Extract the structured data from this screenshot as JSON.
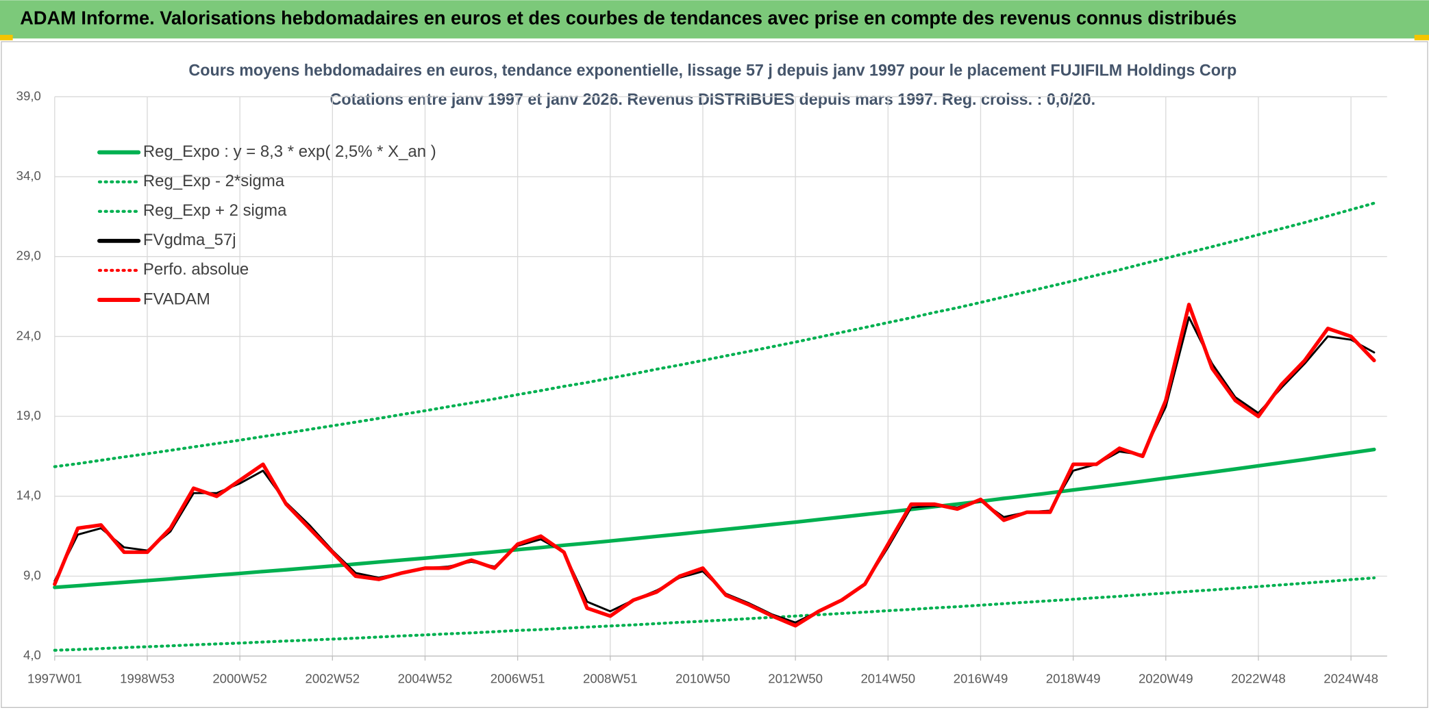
{
  "header": {
    "title": "ADAM Informe. Valorisations hebdomadaires en euros et des courbes de tendances avec prise en compte des revenus connus distribués"
  },
  "chart_data": {
    "type": "line",
    "title": "Cours moyens hebdomadaires en euros, tendance exponentielle, lissage 57 j depuis janv 1997 pour le placement FUJIFILM Holdings Corp",
    "subtitle": "Cotations entre janv 1997 et janv 2026. Revenus DISTRIBUES depuis mars 1997. Reg. croiss. : 0,0/20.",
    "categories": [
      "1997W01",
      null,
      null,
      null,
      "1998W53",
      null,
      null,
      null,
      "2000W52",
      null,
      null,
      null,
      "2002W52",
      null,
      null,
      null,
      "2004W52",
      null,
      null,
      null,
      "2006W51",
      null,
      null,
      null,
      "2008W51",
      null,
      null,
      null,
      "2010W50",
      null,
      null,
      null,
      "2012W50",
      null,
      null,
      null,
      "2014W50",
      null,
      null,
      null,
      "2016W49",
      null,
      null,
      null,
      "2018W49",
      null,
      null,
      null,
      "2020W49",
      null,
      null,
      null,
      "2022W48",
      null,
      null,
      null,
      "2024W48",
      null
    ],
    "ylim": [
      4,
      39
    ],
    "yticks": [
      {
        "value": 4,
        "label": "4,0"
      },
      {
        "value": 9,
        "label": "9,0"
      },
      {
        "value": 14,
        "label": "14,0"
      },
      {
        "value": 19,
        "label": "19,0"
      },
      {
        "value": 24,
        "label": "24,0"
      },
      {
        "value": 29,
        "label": "29,0"
      },
      {
        "value": 34,
        "label": "34,0"
      },
      {
        "value": 39,
        "label": "39,0"
      }
    ],
    "grid": true,
    "legend": "upper-left",
    "series": [
      {
        "name": "Reg_Expo : y = 8,3 * exp( 2,5% *  X_an )",
        "color": "#00b050",
        "style": "solid",
        "values": [
          8.3,
          8.4,
          8.51,
          8.62,
          8.72,
          8.83,
          8.95,
          9.06,
          9.17,
          9.29,
          9.4,
          9.52,
          9.64,
          9.76,
          9.88,
          10.01,
          10.13,
          10.26,
          10.39,
          10.52,
          10.66,
          10.79,
          10.93,
          11.06,
          11.2,
          11.34,
          11.49,
          11.63,
          11.78,
          11.93,
          12.08,
          12.23,
          12.38,
          12.54,
          12.7,
          12.86,
          13.02,
          13.18,
          13.35,
          13.51,
          13.68,
          13.86,
          14.03,
          14.21,
          14.39,
          14.57,
          14.75,
          14.94,
          15.13,
          15.32,
          15.51,
          15.7,
          15.9,
          16.1,
          16.3,
          16.51,
          16.72,
          16.93
        ]
      },
      {
        "name": "Reg_Exp - 2*sigma",
        "color": "#00b050",
        "style": "dotted",
        "values": [
          4.36,
          4.41,
          4.47,
          4.53,
          4.58,
          4.64,
          4.7,
          4.76,
          4.81,
          4.88,
          4.94,
          5.0,
          5.06,
          5.12,
          5.19,
          5.26,
          5.32,
          5.39,
          5.45,
          5.52,
          5.6,
          5.66,
          5.74,
          5.81,
          5.88,
          5.95,
          6.03,
          6.11,
          6.18,
          6.26,
          6.34,
          6.42,
          6.5,
          6.58,
          6.67,
          6.75,
          6.84,
          6.92,
          7.01,
          7.09,
          7.18,
          7.28,
          7.37,
          7.46,
          7.55,
          7.65,
          7.74,
          7.84,
          7.94,
          8.04,
          8.14,
          8.24,
          8.35,
          8.45,
          8.56,
          8.67,
          8.78,
          8.89
        ]
      },
      {
        "name": "Reg_Exp + 2 sigma",
        "color": "#00b050",
        "style": "dotted",
        "values": [
          15.85,
          16.04,
          16.25,
          16.46,
          16.66,
          16.87,
          17.09,
          17.3,
          17.51,
          17.74,
          17.95,
          18.18,
          18.41,
          18.64,
          18.87,
          19.12,
          19.35,
          19.6,
          19.84,
          20.09,
          20.36,
          20.61,
          20.88,
          21.12,
          21.39,
          21.66,
          21.95,
          22.21,
          22.5,
          22.79,
          23.07,
          23.36,
          23.65,
          23.95,
          24.26,
          24.56,
          24.87,
          25.17,
          25.5,
          25.8,
          26.13,
          26.47,
          26.8,
          27.14,
          27.48,
          27.83,
          28.17,
          28.54,
          28.9,
          29.26,
          29.62,
          29.99,
          30.37,
          30.75,
          31.13,
          31.53,
          31.94,
          32.34
        ]
      },
      {
        "name": "FVgdma_57j",
        "color": "#000000",
        "style": "solid",
        "values": [
          8.7,
          11.6,
          12.0,
          10.8,
          10.6,
          11.8,
          14.2,
          14.2,
          14.8,
          15.6,
          13.6,
          12.2,
          10.6,
          9.2,
          8.9,
          9.2,
          9.5,
          9.6,
          9.9,
          9.6,
          10.9,
          11.3,
          10.5,
          7.4,
          6.8,
          7.5,
          8.1,
          8.9,
          9.3,
          7.9,
          7.3,
          6.6,
          6.1,
          6.8,
          7.5,
          8.5,
          10.8,
          13.3,
          13.4,
          13.3,
          13.7,
          12.7,
          13.0,
          13.1,
          15.6,
          16.0,
          16.8,
          16.6,
          19.6,
          25.2,
          22.3,
          20.2,
          19.2,
          20.8,
          22.3,
          24.0,
          23.8,
          23.0
        ]
      },
      {
        "name": "Perfo. absolue",
        "color": "#ff0000",
        "style": "dotted",
        "values": [
          8.5,
          12.0,
          12.2,
          10.5,
          10.5,
          12.0,
          14.5,
          14.0,
          15.0,
          16.0,
          13.5,
          12.0,
          10.5,
          9.0,
          8.8,
          9.2,
          9.5,
          9.5,
          10.0,
          9.5,
          11.0,
          11.5,
          10.5,
          7.0,
          6.5,
          7.5,
          8.0,
          9.0,
          9.5,
          7.8,
          7.2,
          6.5,
          5.9,
          6.8,
          7.5,
          8.5,
          11.0,
          13.5,
          13.5,
          13.2,
          13.8,
          12.5,
          13.0,
          13.0,
          16.0,
          16.0,
          17.0,
          16.5,
          20.0,
          26.0,
          22.0,
          20.0,
          19.0,
          21.0,
          22.5,
          24.5,
          24.0,
          22.5
        ]
      },
      {
        "name": "FVADAM",
        "color": "#ff0000",
        "style": "solid",
        "values": [
          8.5,
          12.0,
          12.2,
          10.5,
          10.5,
          12.0,
          14.5,
          14.0,
          15.0,
          16.0,
          13.5,
          12.0,
          10.5,
          9.0,
          8.8,
          9.2,
          9.5,
          9.5,
          10.0,
          9.5,
          11.0,
          11.5,
          10.5,
          7.0,
          6.5,
          7.5,
          8.0,
          9.0,
          9.5,
          7.8,
          7.2,
          6.5,
          5.9,
          6.8,
          7.5,
          8.5,
          11.0,
          13.5,
          13.5,
          13.2,
          13.8,
          12.5,
          13.0,
          13.0,
          16.0,
          16.0,
          17.0,
          16.5,
          20.0,
          26.0,
          22.0,
          20.0,
          19.0,
          21.0,
          22.5,
          24.5,
          24.0,
          22.5
        ]
      }
    ]
  }
}
